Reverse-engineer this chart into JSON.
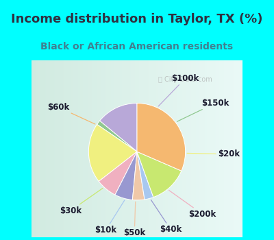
{
  "title": "Income distribution in Taylor, TX (%)",
  "subtitle": "Black or African American residents",
  "watermark": "ⓘ City-Data.com",
  "labels": [
    "$100k",
    "$150k",
    "$20k",
    "$200k",
    "$40k",
    "$50k",
    "$10k",
    "$30k",
    "$60k"
  ],
  "sizes": [
    14,
    1.5,
    20,
    7,
    6,
    4,
    3,
    13,
    31.5
  ],
  "colors": [
    "#b8a8d8",
    "#90c890",
    "#f0f080",
    "#f0b0c0",
    "#9898d0",
    "#f0c8a8",
    "#a8c8f0",
    "#c8e870",
    "#f5b870"
  ],
  "bg_color_top": "#00ffff",
  "bg_color_chart": "#d8f0e8",
  "title_color": "#303040",
  "subtitle_color": "#408090",
  "title_fontsize": 13,
  "subtitle_fontsize": 10,
  "startangle": 90,
  "label_fontsize": 8.5
}
